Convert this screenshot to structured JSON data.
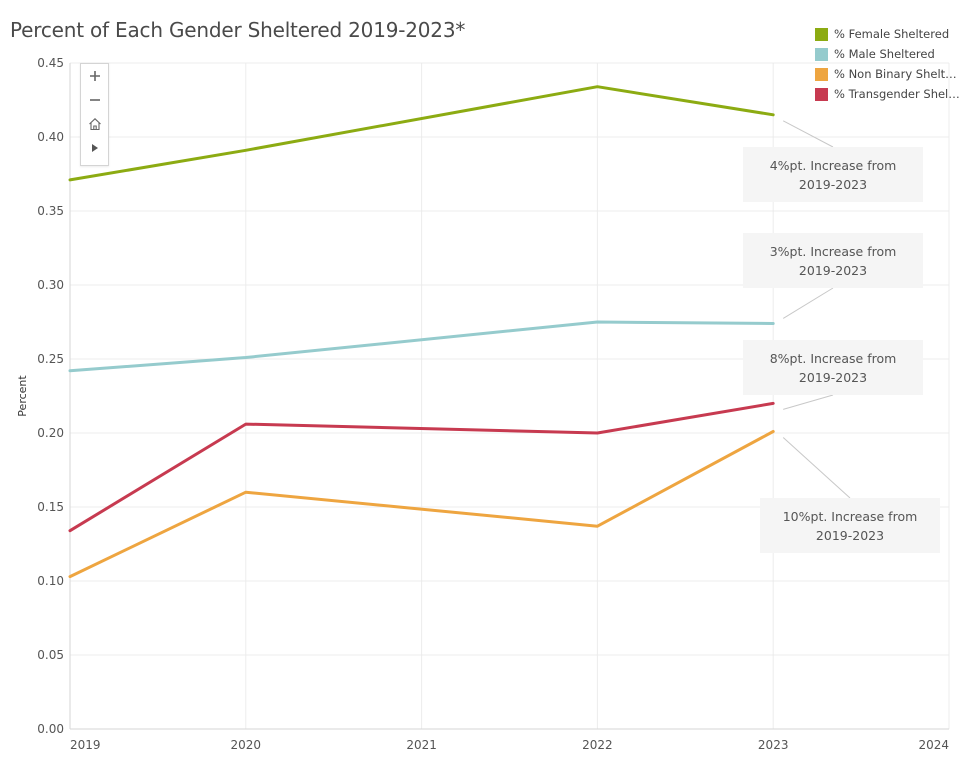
{
  "chart_data": {
    "type": "line",
    "title": "Percent of Each Gender Sheltered 2019-2023*",
    "ylabel": "Percent",
    "xlabel": "",
    "x": [
      2019,
      2020,
      2022,
      2023
    ],
    "x_ticks": [
      "2019",
      "2020",
      "2021",
      "2022",
      "2023",
      "2024"
    ],
    "xlim": [
      2019,
      2024
    ],
    "ylim": [
      0,
      0.45
    ],
    "y_ticks": [
      "0.00",
      "0.05",
      "0.10",
      "0.15",
      "0.20",
      "0.25",
      "0.30",
      "0.35",
      "0.40",
      "0.45"
    ],
    "grid": true,
    "legend_position": "top-right",
    "series": [
      {
        "name": "% Female Sheltered",
        "color": "#8cab12",
        "values": [
          0.371,
          0.391,
          0.434,
          0.415
        ]
      },
      {
        "name": "% Male Sheltered",
        "color": "#95cbcd",
        "values": [
          0.242,
          0.251,
          0.275,
          0.274
        ]
      },
      {
        "name": "% Non Binary Shelte...",
        "color": "#eea540",
        "values": [
          0.103,
          0.16,
          0.137,
          0.201
        ]
      },
      {
        "name": "% Transgender Shelt...",
        "color": "#c73a50",
        "values": [
          0.134,
          0.206,
          0.2,
          0.22
        ]
      }
    ],
    "annotations": [
      {
        "text": "4%pt. Increase from\n2019-2023",
        "series": 0,
        "x": 2023
      },
      {
        "text": "3%pt. Increase from\n2019-2023",
        "series": 1,
        "x": 2023
      },
      {
        "text": "8%pt. Increase from\n2019-2023",
        "series": 3,
        "x": 2023
      },
      {
        "text": "10%pt. Increase from\n2019-2023",
        "series": 2,
        "x": 2023
      }
    ]
  },
  "toolbar": {
    "zoom_in_icon": "plus-icon",
    "zoom_out_icon": "minus-icon",
    "home_icon": "home-icon",
    "play_icon": "play-icon"
  }
}
